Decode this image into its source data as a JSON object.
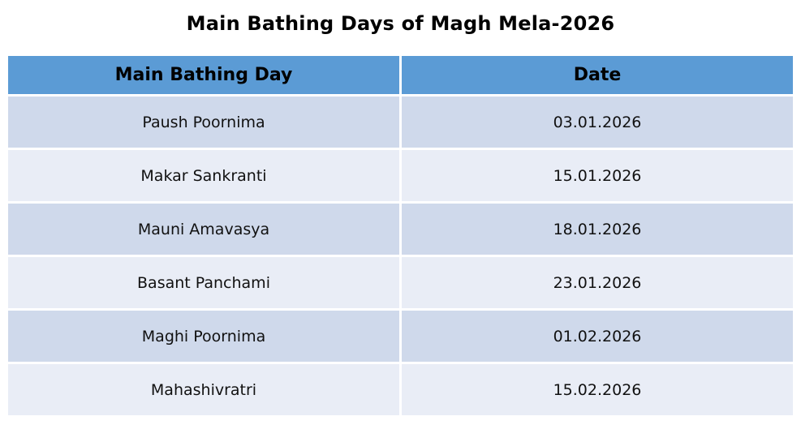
{
  "page_title": "Main Bathing Days of Magh Mela-2026",
  "table": {
    "columns": [
      "Main Bathing Day",
      "Date"
    ],
    "rows": [
      {
        "day": "Paush Poornima",
        "date": "03.01.2026"
      },
      {
        "day": "Makar Sankranti",
        "date": "15.01.2026"
      },
      {
        "day": "Mauni Amavasya",
        "date": "18.01.2026"
      },
      {
        "day": "Basant Panchami",
        "date": "23.01.2026"
      },
      {
        "day": "Maghi Poornima",
        "date": "01.02.2026"
      },
      {
        "day": "Mahashivratri",
        "date": "15.02.2026"
      }
    ]
  },
  "colors": {
    "header_bg": "#5b9bd5",
    "row_odd_bg": "#cfd9eb",
    "row_even_bg": "#e9edf6",
    "separator": "#ffffff",
    "text": "#111111",
    "title": "#000000"
  }
}
